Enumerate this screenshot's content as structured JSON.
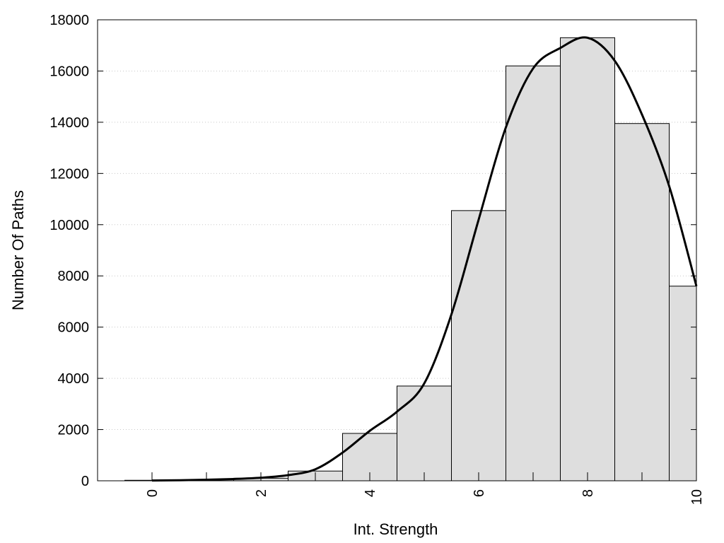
{
  "chart_data": {
    "type": "bar",
    "xlabel": "Int. Strength",
    "ylabel": "Number Of Paths",
    "xlim": [
      -1,
      10
    ],
    "ylim": [
      0,
      18000
    ],
    "x_ticks": [
      0,
      2,
      4,
      6,
      8,
      10
    ],
    "y_ticks": [
      0,
      2000,
      4000,
      6000,
      8000,
      10000,
      12000,
      14000,
      16000,
      18000
    ],
    "grid": "horizontal-dotted",
    "bars": {
      "centers": [
        0,
        1,
        2,
        3,
        4,
        5,
        6,
        7,
        8,
        9,
        10
      ],
      "values": [
        20,
        40,
        100,
        380,
        1850,
        3700,
        10550,
        16200,
        17300,
        13950,
        7600
      ],
      "color": "#dedede",
      "edge_color": "#000000"
    },
    "curve": {
      "x": [
        0,
        0.5,
        1,
        1.5,
        2,
        2.5,
        3,
        3.5,
        4,
        4.5,
        5,
        5.5,
        6,
        6.5,
        7,
        7.5,
        8,
        8.5,
        9,
        9.5,
        10
      ],
      "y": [
        10,
        20,
        40,
        70,
        120,
        220,
        450,
        1100,
        1950,
        2700,
        3800,
        6500,
        10200,
        13800,
        16100,
        16900,
        17300,
        16400,
        14300,
        11500,
        7600
      ],
      "color": "#000000"
    }
  }
}
